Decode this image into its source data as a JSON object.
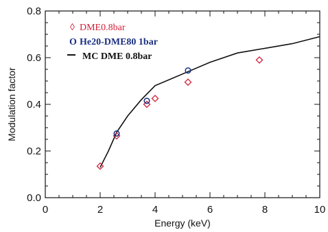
{
  "chart_data": {
    "type": "scatter",
    "xlabel": "Energy (keV)",
    "ylabel": "Modulation factor",
    "xlim": [
      0,
      10
    ],
    "ylim": [
      0,
      0.8
    ],
    "x_ticks": [
      "0",
      "2",
      "4",
      "6",
      "8",
      "10"
    ],
    "y_ticks": [
      "0.0",
      "0.2",
      "0.4",
      "0.6",
      "0.8"
    ],
    "grid": false,
    "legend_position": "top-left",
    "series": [
      {
        "name": "DME0.8bar",
        "marker": "diamond",
        "color": "#d0203a",
        "x": [
          2.0,
          2.6,
          3.7,
          4.0,
          5.2,
          7.8
        ],
        "y": [
          0.135,
          0.265,
          0.4,
          0.425,
          0.495,
          0.59
        ]
      },
      {
        "name": "He20-DME80 1bar",
        "marker": "circle",
        "color": "#1a2f80",
        "x": [
          2.6,
          3.7,
          5.2
        ],
        "y": [
          0.275,
          0.415,
          0.545
        ]
      },
      {
        "name": "MC DME 0.8bar",
        "marker": "line",
        "color": "#111111",
        "x": [
          2.0,
          2.3,
          2.6,
          3.0,
          3.5,
          4.0,
          5.0,
          6.0,
          7.0,
          8.0,
          9.0,
          10.0
        ],
        "y": [
          0.13,
          0.2,
          0.28,
          0.35,
          0.42,
          0.48,
          0.53,
          0.58,
          0.62,
          0.64,
          0.66,
          0.69
        ]
      }
    ],
    "legend": {
      "symbols": [
        "◊",
        "O",
        ""
      ],
      "labels": [
        "DME0.8bar",
        "He20-DME80 1bar",
        "MC DME 0.8bar"
      ],
      "colors": [
        "#d0203a",
        "#1a2f80",
        "#111111"
      ]
    }
  }
}
